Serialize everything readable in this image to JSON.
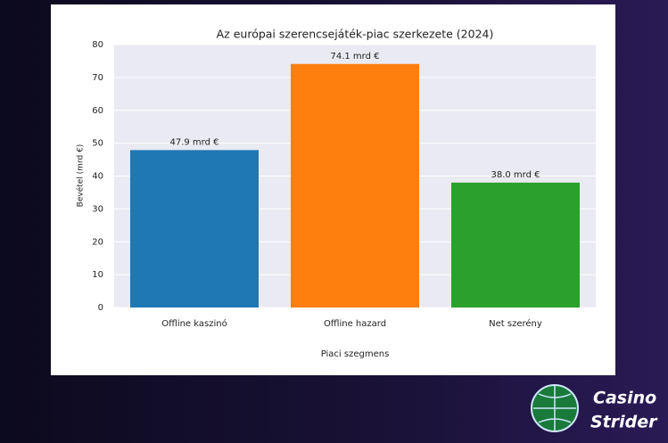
{
  "chart_data": {
    "type": "bar",
    "title": "Az európai szerencsejáték-piac szerkezete (2024)",
    "x_label": "Piaci szegmens",
    "y_label": "Bevétel (mrd €)",
    "categories": [
      "Offline kaszinó",
      "Offline hazard",
      "Net szerény"
    ],
    "values": [
      47.9,
      74.1,
      38
    ],
    "value_labels": [
      "47.9 mrd €",
      "74.1 mrd €",
      "38.0 mrd €"
    ],
    "colors": [
      "#1f77b4",
      "#ff7f0e",
      "#2ca02c"
    ],
    "ylim": [
      0,
      80
    ],
    "yticks": [
      0,
      10,
      20,
      30,
      40,
      50,
      60,
      70,
      80
    ],
    "grid": true
  },
  "logo": {
    "line1": "Casino",
    "line2": "Strider"
  }
}
